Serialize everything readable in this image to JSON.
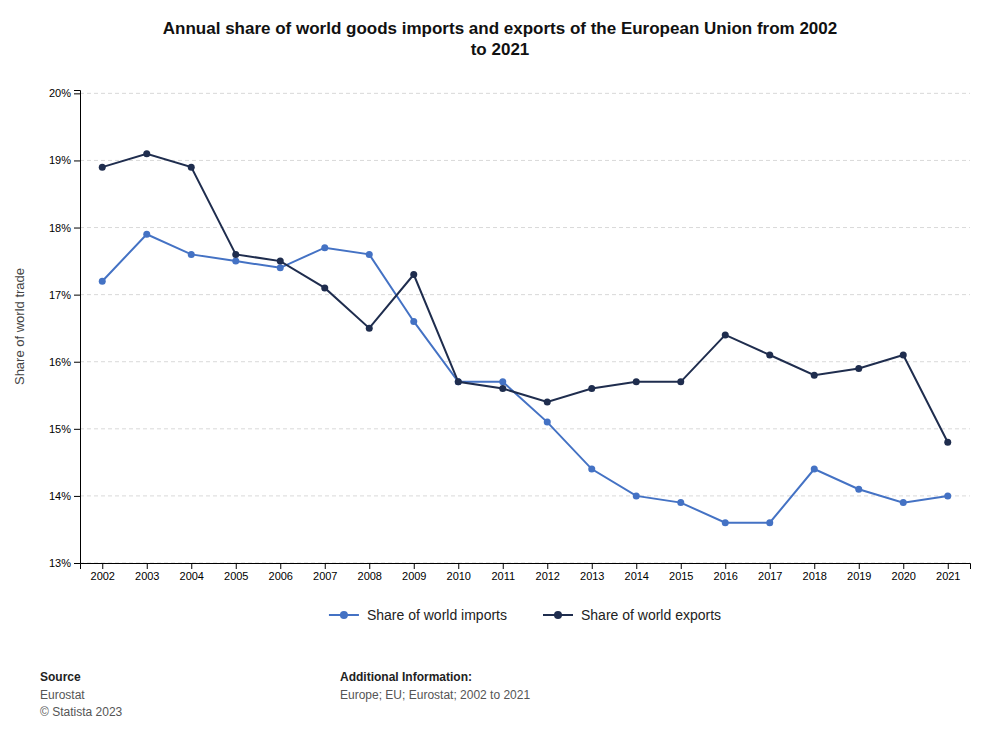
{
  "chart_data": {
    "type": "line",
    "title": "Annual share of world goods imports and exports of the European Union from 2002\nto 2021",
    "ylabel": "Share of world trade",
    "x": [
      2002,
      2003,
      2004,
      2005,
      2006,
      2007,
      2008,
      2009,
      2010,
      2011,
      2012,
      2013,
      2014,
      2015,
      2016,
      2017,
      2018,
      2019,
      2020,
      2021
    ],
    "series": [
      {
        "name": "Share of world imports",
        "color": "#4472c4",
        "marker": "circle",
        "values": [
          17.2,
          17.9,
          17.6,
          17.5,
          17.4,
          17.7,
          17.6,
          16.6,
          15.7,
          15.7,
          15.1,
          14.4,
          14.0,
          13.9,
          13.6,
          13.6,
          14.4,
          14.1,
          13.9,
          14.0
        ]
      },
      {
        "name": "Share of world exports",
        "color": "#1f2d4e",
        "marker": "circle",
        "values": [
          18.9,
          19.1,
          18.9,
          17.6,
          17.5,
          17.1,
          16.5,
          17.3,
          15.7,
          15.6,
          15.4,
          15.6,
          15.7,
          15.7,
          16.4,
          16.1,
          15.8,
          15.9,
          16.1,
          14.8
        ]
      }
    ],
    "xlim": [
      2001.5,
      2021.5
    ],
    "xticks": [
      2002,
      2003,
      2004,
      2005,
      2006,
      2007,
      2008,
      2009,
      2010,
      2011,
      2012,
      2013,
      2014,
      2015,
      2016,
      2017,
      2018,
      2019,
      2020,
      2021
    ],
    "ylim": [
      13.0,
      20.05
    ],
    "yticks": [
      {
        "value": 13,
        "label": "13%"
      },
      {
        "value": 14,
        "label": "14%"
      },
      {
        "value": 15,
        "label": "15%"
      },
      {
        "value": 16,
        "label": "16%"
      },
      {
        "value": 17,
        "label": "17%"
      },
      {
        "value": 18,
        "label": "18%"
      },
      {
        "value": 19,
        "label": "19%"
      },
      {
        "value": 20,
        "label": "20%"
      }
    ],
    "grid": true,
    "legend": "bottom",
    "annotations": [
      {
        "title": "Source",
        "text": "Eurostat\n© Statista 2023"
      },
      {
        "title": "Additional Information:",
        "text": "Europe; EU; Eurostat; 2002 to 2021"
      }
    ]
  }
}
